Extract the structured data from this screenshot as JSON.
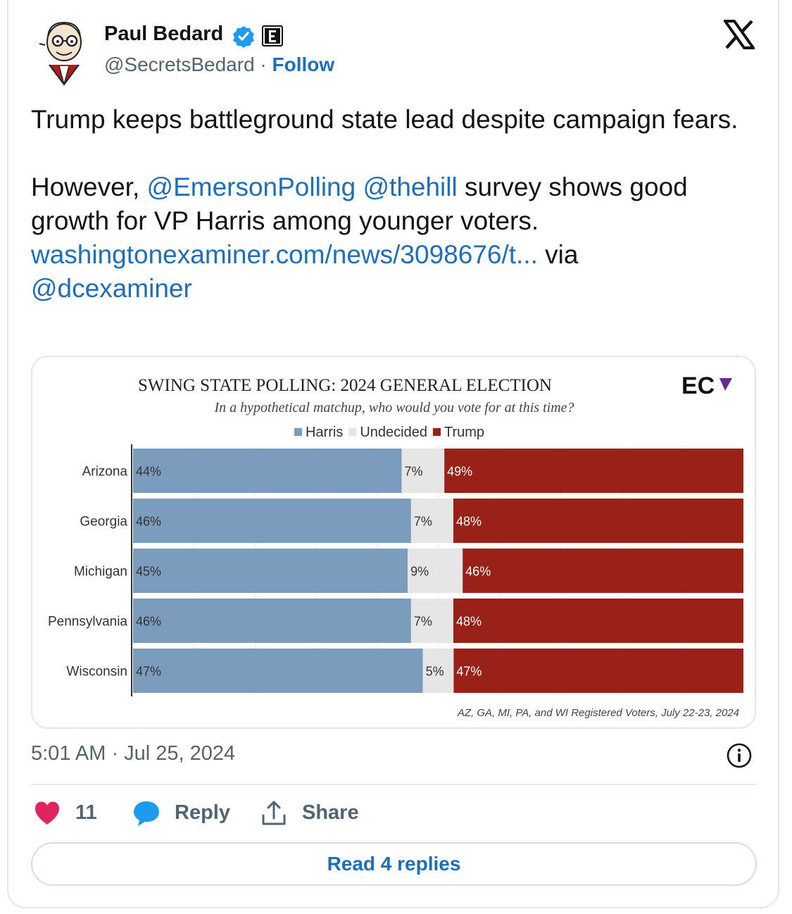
{
  "tweet": {
    "author_name": "Paul Bedard",
    "handle": "@SecretsBedard",
    "separator": " · ",
    "follow_label": "Follow",
    "text_line1": "Trump keeps battleground state lead despite campaign fears.",
    "text_p2_prefix": "However, ",
    "mention1": "@EmersonPolling",
    "mention2": "@thehill",
    "text_p2_mid": " survey shows good growth for VP Harris among younger voters.",
    "link": "washingtonexaminer.com/news/3098676/t...",
    "via": " via",
    "mention3": "@dcexaminer",
    "timestamp": "5:01 AM · Jul 25, 2024",
    "likes": "11",
    "reply_label": "Reply",
    "share_label": "Share",
    "read_replies": "Read 4 replies"
  },
  "chart_data": {
    "type": "bar",
    "stacked": true,
    "orientation": "horizontal",
    "title": "SWING STATE POLLING: 2024 GENERAL ELECTION",
    "subtitle": "In a hypothetical matchup, who would you vote for at this time?",
    "logo_text": "EC",
    "legend_position": "top-center",
    "categories": [
      "Arizona",
      "Georgia",
      "Michigan",
      "Pennsylvania",
      "Wisconsin"
    ],
    "series": [
      {
        "name": "Harris",
        "values": [
          44,
          46,
          45,
          46,
          47
        ],
        "color": "#7b9cbc"
      },
      {
        "name": "Undecided",
        "values": [
          7,
          7,
          9,
          7,
          5
        ],
        "color": "#e6e6e6"
      },
      {
        "name": "Trump",
        "values": [
          49,
          48,
          46,
          48,
          47
        ],
        "color": "#9a2118"
      }
    ],
    "value_suffix": "%",
    "footnote": "AZ, GA, MI, PA, and WI Registered Voters, July 22-23, 2024"
  },
  "colors": {
    "link": "#1d6fb8",
    "heart": "#e0245e",
    "reply_bubble": "#1d9bf0",
    "verified": "#1d9bf0"
  },
  "icons": {
    "close": "x-logo-icon",
    "verified": "verified-badge-icon",
    "info": "info-icon",
    "like": "heart-icon",
    "reply": "reply-bubble-icon",
    "share": "share-icon"
  }
}
